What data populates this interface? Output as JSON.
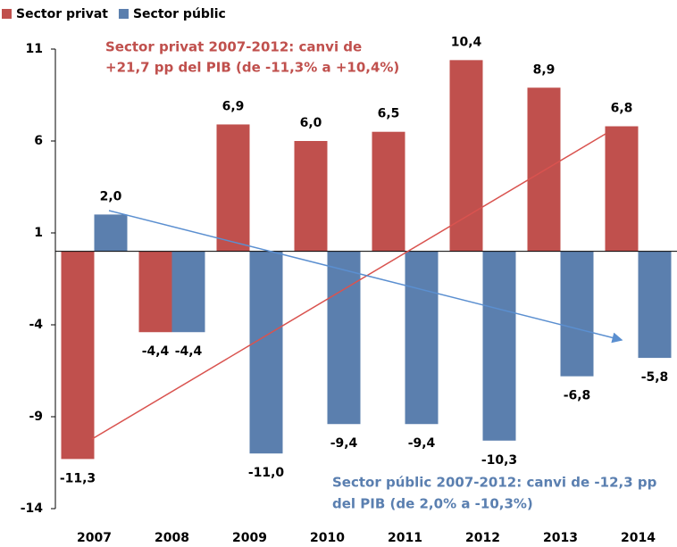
{
  "chart_data": {
    "type": "bar",
    "categories": [
      "2007",
      "2008",
      "2009",
      "2010",
      "2011",
      "2012",
      "2013",
      "2014"
    ],
    "series": [
      {
        "name": "Sector privat",
        "color": "#c0504d",
        "values": [
          -11.3,
          -4.4,
          6.9,
          6.0,
          6.5,
          10.4,
          8.9,
          6.8
        ],
        "value_labels": [
          "-11,3",
          "-4,4",
          "6,9",
          "6,0",
          "6,5",
          "10,4",
          "8,9",
          "6,8"
        ]
      },
      {
        "name": "Sector públic",
        "color": "#5b7fae",
        "values": [
          2.0,
          -4.4,
          -11.0,
          -9.4,
          -9.4,
          -10.3,
          -6.8,
          -5.8
        ],
        "value_labels": [
          "2,0",
          "-4,4",
          "-11,0",
          "-9,4",
          "-9,4",
          "-10,3",
          "-6,8",
          "-5,8"
        ]
      }
    ],
    "ylim": [
      -14,
      11
    ],
    "yticks": [
      -14,
      -9,
      -4,
      1,
      6,
      11
    ],
    "annotations": [
      [
        "Sector privat 2007-2012: canvi de",
        "+21,7  pp del PIB (de -11,3% a +10,4%)"
      ],
      [
        "Sector públic 2007-2012: canvi de -12,3 pp",
        "del PIB (de 2,0% a -10,3%)"
      ]
    ],
    "legend": "top-left"
  }
}
